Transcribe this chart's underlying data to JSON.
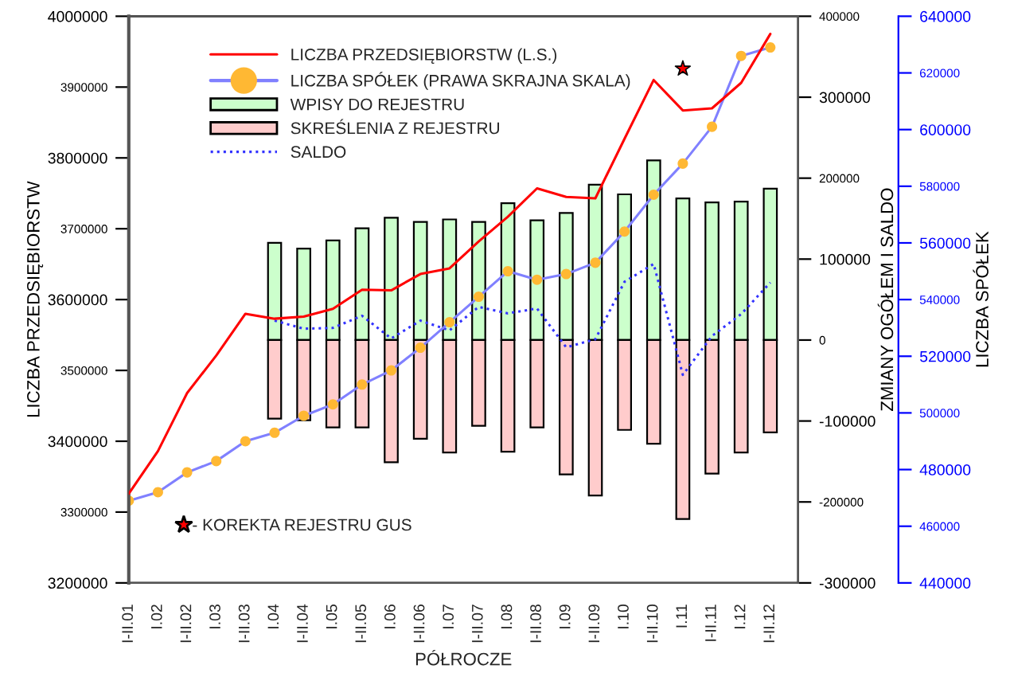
{
  "chart_data": {
    "type": "bar",
    "categories": [
      "I-II.01",
      "I.02",
      "I-II.02",
      "I.03",
      "I-II.03",
      "I.04",
      "I-II.04",
      "I.05",
      "I-II.05",
      "I.06",
      "I-II.06",
      "I.07",
      "I-II.07",
      "I.08",
      "I-II.08",
      "I.09",
      "I-II.09",
      "I.10",
      "I-II.10",
      "I.11",
      "I-II.11",
      "I.12",
      "I-II.12"
    ],
    "xlabel": "PÓŁROCZE",
    "ylabel": "LICZBA PRZEDSIĘBIORSTW",
    "y2label": "ZMIANY OGÓŁEM I SALDO",
    "y3label": "LICZBA SPÓŁEK",
    "ylim": [
      3200000,
      4000000
    ],
    "yticks": [
      3200000,
      3300000,
      3400000,
      3500000,
      3600000,
      3700000,
      3800000,
      3900000,
      4000000
    ],
    "y2lim": [
      -300000,
      400000
    ],
    "y2ticks": [
      -300000,
      -200000,
      -100000,
      0,
      100000,
      200000,
      300000,
      400000
    ],
    "y3lim": [
      440000,
      640000
    ],
    "y3ticks": [
      440000,
      460000,
      480000,
      500000,
      520000,
      540000,
      560000,
      580000,
      600000,
      620000,
      640000
    ],
    "legend": "top left",
    "grid": false,
    "stacked": true,
    "series": [
      {
        "name": "LICZBA PRZEDSIĘBIORSTW (L.S.)",
        "type": "line",
        "color": "#ff0000",
        "marker": "none",
        "line_style": "solid",
        "values": [
          3326000,
          3386000,
          3468000,
          3521000,
          3580000,
          3573000,
          3576000,
          3587000,
          3614000,
          3613000,
          3636000,
          3644000,
          3682000,
          3717000,
          3757000,
          3745000,
          3743000,
          3827000,
          3910000,
          3867000,
          3870000,
          3906000,
          3975000
        ]
      },
      {
        "name": "LICZBA SPÓŁEK (PRAWA SKRAJNA SKALA)",
        "type": "line",
        "axis": "y3",
        "color": "#8080ff",
        "marker": "circle",
        "line_style": "solid",
        "colors": [
          "#ffb833",
          "#ffb833",
          "#ffb833",
          "#ffb833",
          "#ffb833",
          "#ffb833",
          "#ffb833",
          "#ffb833",
          "#ffb833",
          "#ffb833",
          "#ffb833",
          "#ffb833",
          "#ffb833",
          "#ffb833",
          "#ffb833",
          "#ffb833",
          "#ffb833",
          "#ffb833",
          "#ffb833",
          "#ffb833",
          "#ffb833",
          "#ffb833",
          "#ffb833"
        ],
        "values": [
          469000,
          472000,
          479000,
          483000,
          490000,
          493000,
          499000,
          503000,
          510000,
          515000,
          523000,
          532000,
          541000,
          550000,
          547000,
          549000,
          553000,
          564000,
          577000,
          588000,
          601000,
          626000,
          629000
        ]
      },
      {
        "name": "WPISY DO REJESTRU",
        "axis": "y2",
        "color": "#ccffcc",
        "values": [
          null,
          null,
          null,
          null,
          null,
          120000,
          113000,
          123000,
          138000,
          151000,
          146000,
          149000,
          146000,
          169000,
          148000,
          157000,
          192000,
          180000,
          222000,
          175000,
          170000,
          171000,
          187000
        ]
      },
      {
        "name": "SKREŚLENIA Z REJESTRU",
        "axis": "y2",
        "color": "#ffcccc",
        "values": [
          null,
          null,
          null,
          null,
          null,
          -97000,
          -99000,
          -108000,
          -108000,
          -151000,
          -122000,
          -139000,
          -106000,
          -138000,
          -108000,
          -166000,
          -192000,
          -111000,
          -128000,
          -221000,
          -165000,
          -139000,
          -114000
        ]
      },
      {
        "name": "SALDO",
        "type": "line",
        "axis": "y2",
        "color": "#3333ff",
        "marker": "none",
        "line_style": "dotted",
        "values": [
          null,
          null,
          null,
          null,
          null,
          24000,
          14000,
          15000,
          30000,
          2000,
          24000,
          12000,
          41000,
          33000,
          39000,
          -9000,
          1000,
          72000,
          94000,
          -43000,
          5000,
          32000,
          71000
        ]
      },
      {
        "name": "- KOREKTA REJESTRU GUS",
        "type": "scatter",
        "color": "#ff0000",
        "marker": "star",
        "values": [
          null,
          null,
          null,
          null,
          null,
          null,
          null,
          null,
          null,
          null,
          null,
          null,
          null,
          null,
          null,
          null,
          null,
          null,
          null,
          3926000,
          null,
          null,
          null
        ]
      }
    ]
  }
}
